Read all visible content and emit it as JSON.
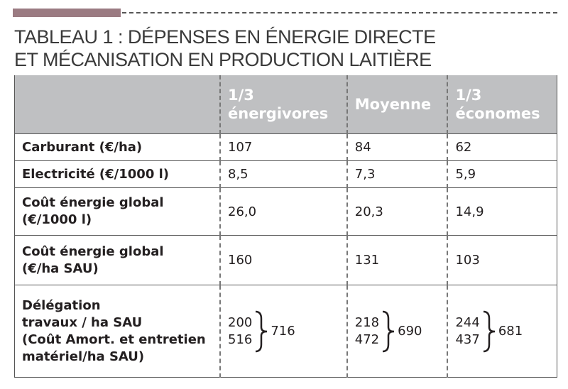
{
  "header": {
    "title_lines": [
      "TABLEAU 1 : DÉPENSES EN ÉNERGIE DIRECTE",
      "ET MÉCANISATION EN PRODUCTION LAITIÈRE"
    ]
  },
  "table": {
    "columns": [
      [
        "1/3",
        "énergivores"
      ],
      [
        "Moyenne"
      ],
      [
        "1/3",
        "économes"
      ]
    ],
    "rows": [
      {
        "label": [
          "Carburant (€/ha)"
        ],
        "values": [
          "107",
          "84",
          "62"
        ]
      },
      {
        "label": [
          "Electricité (€/1000 l)"
        ],
        "values": [
          "8,5",
          "7,3",
          "5,9"
        ]
      },
      {
        "label": [
          "Coût énergie global",
          "(€/1000 l)"
        ],
        "values": [
          "26,0",
          "20,3",
          "14,9"
        ]
      },
      {
        "label": [
          "Coût énergie global",
          "(€/ha SAU)"
        ],
        "values": [
          "160",
          "131",
          "103"
        ]
      },
      {
        "label": [
          "Délégation",
          "travaux / ha SAU",
          "(Coût Amort. et entretien",
          "matériel/ha SAU)"
        ],
        "values": [
          {
            "parts": [
              "200",
              "516"
            ],
            "total": "716"
          },
          {
            "parts": [
              "218",
              "472"
            ],
            "total": "690"
          },
          {
            "parts": [
              "244",
              "437"
            ],
            "total": "681"
          }
        ]
      }
    ]
  }
}
